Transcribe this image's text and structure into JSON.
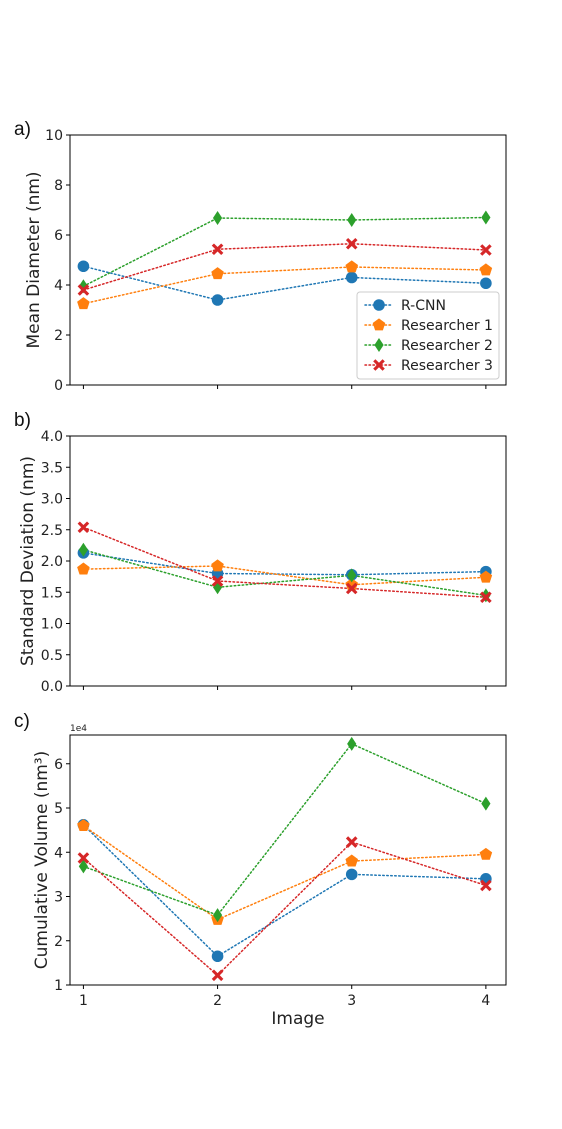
{
  "figure": {
    "panel_labels": [
      "a)",
      "b)",
      "c)"
    ],
    "xlabel": "Image"
  },
  "colors": {
    "R-CNN": "#1f77b4",
    "Researcher 1": "#ff7f0e",
    "Researcher 2": "#2ca02c",
    "Researcher 3": "#d62728"
  },
  "markers": {
    "R-CNN": "circle",
    "Researcher 1": "pentagon",
    "Researcher 2": "thin-diamond",
    "Researcher 3": "x-filled"
  },
  "chart_data": [
    {
      "type": "line",
      "panel": "a)",
      "title": "",
      "xlabel": "",
      "ylabel": "Mean Diameter (nm)",
      "x": [
        1,
        2,
        3,
        4
      ],
      "xlim": [
        0.9,
        4.15
      ],
      "ylim": [
        0,
        10
      ],
      "yticks": [
        0,
        2,
        4,
        6,
        8,
        10
      ],
      "ytick_labels": [
        "0",
        "2",
        "4",
        "6",
        "8",
        "10"
      ],
      "xtick_labels": [],
      "legend": "lower-right",
      "grid": false,
      "line_style": "dotted",
      "series": [
        {
          "name": "R-CNN",
          "values": [
            4.75,
            3.4,
            4.3,
            4.07
          ]
        },
        {
          "name": "Researcher 1",
          "values": [
            3.25,
            4.45,
            4.72,
            4.6
          ]
        },
        {
          "name": "Researcher 2",
          "values": [
            3.95,
            6.68,
            6.6,
            6.7
          ]
        },
        {
          "name": "Researcher 3",
          "values": [
            3.8,
            5.43,
            5.65,
            5.4
          ]
        }
      ]
    },
    {
      "type": "line",
      "panel": "b)",
      "title": "",
      "xlabel": "",
      "ylabel": "Standard Deviation (nm)",
      "x": [
        1,
        2,
        3,
        4
      ],
      "xlim": [
        0.9,
        4.15
      ],
      "ylim": [
        0,
        4
      ],
      "yticks": [
        0,
        0.5,
        1,
        1.5,
        2,
        2.5,
        3,
        3.5,
        4
      ],
      "ytick_labels": [
        "0.0",
        "0.5",
        "1.0",
        "1.5",
        "2.0",
        "2.5",
        "3.0",
        "3.5",
        "4.0"
      ],
      "xtick_labels": [],
      "grid": false,
      "line_style": "dotted",
      "series": [
        {
          "name": "R-CNN",
          "values": [
            2.13,
            1.8,
            1.78,
            1.83
          ]
        },
        {
          "name": "Researcher 1",
          "values": [
            1.87,
            1.92,
            1.62,
            1.74
          ]
        },
        {
          "name": "Researcher 2",
          "values": [
            2.18,
            1.58,
            1.77,
            1.45
          ]
        },
        {
          "name": "Researcher 3",
          "values": [
            2.54,
            1.68,
            1.56,
            1.42
          ]
        }
      ]
    },
    {
      "type": "line",
      "panel": "c)",
      "title": "",
      "xlabel": "Image",
      "ylabel": "Cumulative Volume (nm³)",
      "offset_text": "1e4",
      "x": [
        1,
        2,
        3,
        4
      ],
      "xlim": [
        0.9,
        4.15
      ],
      "ylim": [
        10000,
        66500
      ],
      "yticks": [
        10000,
        20000,
        30000,
        40000,
        50000,
        60000
      ],
      "ytick_labels": [
        "1",
        "2",
        "3",
        "4",
        "5",
        "6"
      ],
      "xtick_labels": [
        "1",
        "2",
        "3",
        "4"
      ],
      "grid": false,
      "line_style": "dotted",
      "series": [
        {
          "name": "R-CNN",
          "values": [
            46200,
            16500,
            35000,
            34000
          ]
        },
        {
          "name": "Researcher 1",
          "values": [
            46000,
            24800,
            38000,
            39500
          ]
        },
        {
          "name": "Researcher 2",
          "values": [
            36800,
            25800,
            64500,
            51000
          ]
        },
        {
          "name": "Researcher 3",
          "values": [
            38700,
            12200,
            42300,
            32500
          ]
        }
      ]
    }
  ]
}
